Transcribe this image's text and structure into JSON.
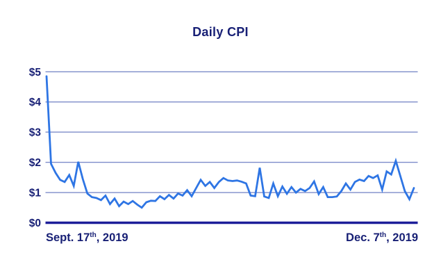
{
  "chart_data": {
    "type": "line",
    "title": "Daily CPI",
    "legend": "none",
    "grid": "horizontal",
    "x_axis": {
      "frequency": "daily",
      "points": 82,
      "start": {
        "prefix": "Sept. 17",
        "sup": "th",
        "suffix": ", 2019",
        "full": "Sept. 17th, 2019"
      },
      "end": {
        "prefix": "Dec. 7",
        "sup": "th",
        "suffix": ", 2019",
        "full": "Dec. 7th, 2019"
      }
    },
    "y_axis": {
      "min": 0,
      "max": 5,
      "unit": "$",
      "ticks": [
        {
          "label": "$5",
          "value": 5
        },
        {
          "label": "$4",
          "value": 4
        },
        {
          "label": "$3",
          "value": 3
        },
        {
          "label": "$2",
          "value": 2
        },
        {
          "label": "$1",
          "value": 1
        },
        {
          "label": "$0",
          "value": 0
        }
      ]
    },
    "series": [
      {
        "name": "Daily CPI",
        "values": [
          4.85,
          1.95,
          1.65,
          1.42,
          1.35,
          1.58,
          1.22,
          2.02,
          1.45,
          0.97,
          0.85,
          0.82,
          0.75,
          0.9,
          0.62,
          0.8,
          0.55,
          0.7,
          0.62,
          0.72,
          0.6,
          0.5,
          0.68,
          0.73,
          0.72,
          0.88,
          0.78,
          0.92,
          0.8,
          0.97,
          0.9,
          1.08,
          0.88,
          1.15,
          1.42,
          1.22,
          1.35,
          1.15,
          1.35,
          1.48,
          1.4,
          1.38,
          1.4,
          1.36,
          1.3,
          0.9,
          0.88,
          1.82,
          0.87,
          0.82,
          1.3,
          0.88,
          1.2,
          0.96,
          1.18,
          1.0,
          1.12,
          1.05,
          1.15,
          1.37,
          0.95,
          1.18,
          0.85,
          0.85,
          0.87,
          1.05,
          1.3,
          1.1,
          1.35,
          1.43,
          1.38,
          1.55,
          1.48,
          1.57,
          1.1,
          1.7,
          1.6,
          2.05,
          1.55,
          1.05,
          0.78,
          1.15
        ]
      }
    ],
    "colors": {
      "line": "#2e75e4",
      "gridline": "#7d8cc9",
      "zero_axis": "#1d1e99",
      "text": "#171f75"
    }
  }
}
